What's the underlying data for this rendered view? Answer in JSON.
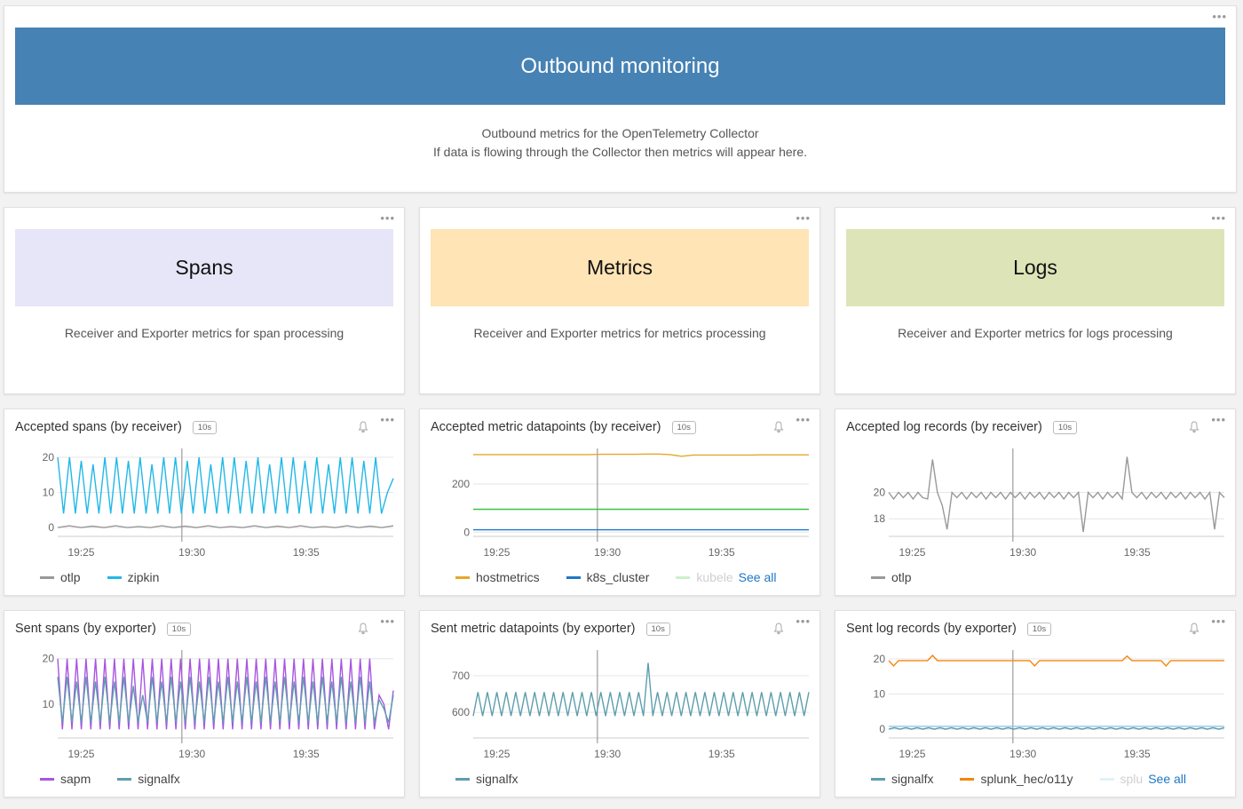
{
  "banner": {
    "title": "Outbound monitoring",
    "line1": "Outbound metrics for the OpenTelemetry Collector",
    "line2": "If data is flowing through the Collector then metrics will appear here."
  },
  "sections": [
    {
      "title": "Spans",
      "description": "Receiver and Exporter metrics for span processing",
      "color": "#e6e6f8"
    },
    {
      "title": "Metrics",
      "description": "Receiver and Exporter metrics for metrics processing",
      "color": "#ffe4b5"
    },
    {
      "title": "Logs",
      "description": "Receiver and Exporter metrics for logs processing",
      "color": "#dde4b8"
    }
  ],
  "resolution": "10s",
  "see_all": "See all",
  "chart_data": [
    {
      "type": "line",
      "title": "Accepted spans (by receiver)",
      "x_ticks": [
        "19:25",
        "19:30",
        "19:35"
      ],
      "y_ticks": [
        0,
        10,
        20
      ],
      "ylim": [
        -2,
        22
      ],
      "series": [
        {
          "name": "otlp",
          "color": "#999999",
          "values": [
            0,
            0.5,
            0,
            0.4,
            0,
            0.5,
            0,
            0.3,
            0,
            0.5,
            0,
            0.4,
            0,
            0.5,
            0,
            0.3,
            0,
            0.5,
            0,
            0.4,
            0,
            0.5,
            0,
            0.3,
            0,
            0.5,
            0,
            0.4,
            0,
            0.5
          ]
        },
        {
          "name": "zipkin",
          "color": "#21b8e8",
          "values": [
            20,
            4,
            20,
            4,
            19,
            4,
            18,
            4,
            20,
            4,
            20,
            4,
            19,
            4,
            20,
            4,
            18,
            4,
            20,
            4,
            20,
            4,
            19,
            4,
            20,
            4,
            18,
            4,
            20,
            4,
            20,
            4,
            19,
            4,
            20,
            4,
            18,
            4,
            20,
            4,
            20,
            4,
            19,
            4,
            20,
            4,
            18,
            4,
            20,
            4,
            20,
            4,
            19,
            4,
            20,
            4,
            10,
            14
          ]
        }
      ]
    },
    {
      "type": "line",
      "title": "Accepted metric datapoints (by receiver)",
      "x_ticks": [
        "19:25",
        "19:30",
        "19:35"
      ],
      "y_ticks": [
        0,
        200
      ],
      "ylim": [
        -10,
        340
      ],
      "series": [
        {
          "name": "hostmetrics",
          "color": "#e4a82b",
          "values": [
            322,
            322,
            322,
            322,
            322,
            322,
            322,
            322,
            322,
            322,
            322,
            323,
            323,
            323,
            323,
            324,
            324,
            322,
            315,
            320,
            320,
            320,
            320,
            320,
            320,
            321,
            321,
            321,
            321,
            321
          ]
        },
        {
          "name": "k8s_cluster",
          "color": "#1f77c6",
          "values": [
            10,
            10,
            10,
            10,
            10,
            10,
            10,
            10,
            10,
            10,
            10,
            10,
            10,
            10,
            10,
            10,
            10,
            10,
            10,
            10,
            10,
            10,
            10,
            10,
            10,
            10,
            10,
            10,
            10,
            10
          ]
        },
        {
          "name": "kubeletstats",
          "color": "#3cc43c",
          "values": [
            95,
            95,
            95,
            95,
            95,
            95,
            95,
            95,
            95,
            95,
            95,
            95,
            95,
            95,
            95,
            95,
            95,
            95,
            95,
            95,
            95,
            95,
            95,
            95,
            95,
            95,
            95,
            95,
            95,
            95
          ]
        }
      ]
    },
    {
      "type": "line",
      "title": "Accepted log records (by receiver)",
      "x_ticks": [
        "19:25",
        "19:30",
        "19:35"
      ],
      "y_ticks": [
        18,
        20
      ],
      "ylim": [
        16.8,
        23.2
      ],
      "series": [
        {
          "name": "otlp",
          "color": "#999999",
          "values": [
            20,
            19.5,
            20,
            19.6,
            20,
            19.5,
            20,
            19.6,
            19.5,
            22.5,
            20,
            19,
            17.2,
            20,
            19.6,
            20,
            19.5,
            20,
            19.6,
            20,
            19.5,
            20,
            19.6,
            20,
            19.5,
            20,
            19.6,
            20,
            19.5,
            20,
            19.6,
            20,
            19.5,
            20,
            19.6,
            20,
            19.5,
            20,
            19.6,
            20,
            17,
            20,
            19.6,
            20,
            19.5,
            20,
            19.6,
            20,
            19.5,
            22.7,
            20,
            19.6,
            20,
            19.5,
            20,
            19.6,
            20,
            19.5,
            20,
            19.6,
            20,
            19.5,
            20,
            19.6,
            20,
            19.5,
            20,
            17.2,
            20,
            19.6
          ]
        }
      ]
    },
    {
      "type": "line",
      "title": "Sent spans (by exporter)",
      "x_ticks": [
        "19:25",
        "19:30",
        "19:35"
      ],
      "y_ticks": [
        10,
        20
      ],
      "ylim": [
        3,
        21.5
      ],
      "series": [
        {
          "name": "sapm",
          "color": "#a855e0",
          "values": [
            20,
            4.5,
            20,
            4.5,
            20,
            4.5,
            20,
            4.5,
            20,
            4.5,
            20,
            4.5,
            20,
            4.5,
            20,
            4.5,
            20,
            4.5,
            20,
            4.5,
            20,
            4.5,
            20,
            4.5,
            20,
            4.5,
            20,
            4.5,
            20,
            4.5,
            20,
            4.5,
            20,
            4.5,
            20,
            4.5,
            20,
            4.5,
            20,
            4.5,
            20,
            4.5,
            20,
            4.5,
            20,
            4.5,
            20,
            4.5,
            20,
            4.5,
            20,
            4.5,
            20,
            4.5,
            20,
            4.5,
            20,
            4.5,
            20,
            4.5,
            20,
            4.5,
            20,
            4.5,
            20,
            4.5,
            20,
            4.5,
            12,
            10,
            4.5,
            13
          ]
        },
        {
          "name": "signalfx",
          "color": "#5e9ead",
          "values": [
            16,
            6,
            16,
            6,
            15,
            6,
            16,
            6,
            15,
            6,
            16,
            6,
            15,
            6,
            16,
            6,
            14,
            6,
            12,
            6,
            16,
            6,
            15,
            6,
            16,
            6,
            15,
            6,
            16,
            6,
            15,
            6,
            16,
            6,
            15,
            6,
            16,
            6,
            15,
            6,
            16,
            6,
            15,
            6,
            16,
            6,
            15,
            6,
            16,
            6,
            15,
            6,
            16,
            6,
            15,
            6,
            16,
            6,
            15,
            6,
            16,
            6,
            15,
            6,
            16,
            6,
            15,
            6,
            11,
            9,
            6,
            12
          ]
        }
      ]
    },
    {
      "type": "line",
      "title": "Sent metric datapoints (by exporter)",
      "x_ticks": [
        "19:25",
        "19:30",
        "19:35"
      ],
      "y_ticks": [
        600,
        700
      ],
      "ylim": [
        535,
        765
      ],
      "series": [
        {
          "name": "signalfx",
          "color": "#5e9ead",
          "values": [
            590,
            655,
            590,
            655,
            590,
            655,
            590,
            655,
            590,
            655,
            590,
            655,
            590,
            655,
            590,
            655,
            590,
            655,
            590,
            655,
            590,
            655,
            590,
            655,
            590,
            655,
            590,
            655,
            590,
            655,
            590,
            655,
            590,
            655,
            590,
            655,
            590,
            735,
            590,
            655,
            590,
            655,
            590,
            655,
            590,
            655,
            590,
            655,
            590,
            655,
            590,
            655,
            590,
            655,
            590,
            655,
            590,
            655,
            590,
            655,
            590,
            655,
            590,
            655,
            590,
            655,
            590,
            655,
            590,
            655,
            590,
            655
          ]
        }
      ]
    },
    {
      "type": "line",
      "title": "Sent log records (by exporter)",
      "x_ticks": [
        "19:25",
        "19:30",
        "19:35"
      ],
      "y_ticks": [
        0,
        10,
        20
      ],
      "ylim": [
        -2,
        22
      ],
      "series": [
        {
          "name": "signalfx",
          "color": "#5e9ead",
          "values": [
            0,
            0.4,
            0,
            0.4,
            0,
            0.4,
            0,
            0.4,
            0,
            0.4,
            0,
            0.4,
            0,
            0.4,
            0,
            0.4,
            0,
            0.4,
            0,
            0.4,
            0,
            0.4,
            0,
            0.4,
            0,
            0.4,
            0,
            0.4,
            0,
            0.4,
            0,
            0.4,
            0,
            0.4,
            0,
            0.4,
            0,
            0.4,
            0,
            0.4,
            0,
            0.4,
            0,
            0.4,
            0,
            0.4,
            0,
            0.4,
            0,
            0.4,
            0,
            0.4,
            0,
            0.4,
            0,
            0.4,
            0,
            0.4,
            0,
            0.4
          ]
        },
        {
          "name": "splunk_hec/o11y",
          "color": "#f5860d",
          "values": [
            19.5,
            18,
            19.5,
            19.5,
            19.5,
            19.5,
            19.5,
            19.5,
            19.5,
            21,
            19.5,
            19.5,
            19.5,
            19.5,
            19.5,
            19.5,
            19.5,
            19.5,
            19.5,
            19.5,
            19.5,
            19.5,
            19.5,
            19.5,
            19.5,
            19.5,
            19.5,
            19.5,
            19.5,
            19.5,
            18,
            19.5,
            19.5,
            19.5,
            19.5,
            19.5,
            19.5,
            19.5,
            19.5,
            19.5,
            19.5,
            19.5,
            19.5,
            19.5,
            19.5,
            19.5,
            19.5,
            19.5,
            19.5,
            20.8,
            19.5,
            19.5,
            19.5,
            19.5,
            19.5,
            19.5,
            19.5,
            18,
            19.5,
            19.5,
            19.5,
            19.5,
            19.5,
            19.5,
            19.5,
            19.5,
            19.5,
            19.5,
            19.5,
            19.5
          ]
        },
        {
          "name": "splunk_hec",
          "color": "#8fc8e8",
          "values": [
            0.8,
            0.8,
            0.8,
            0.8,
            0.8,
            0.8,
            0.8,
            0.8,
            0.8,
            0.8,
            0.8,
            0.8,
            0.8,
            0.8,
            0.8,
            0.8,
            0.8,
            0.8,
            0.8,
            0.8,
            0.8,
            0.8,
            0.8,
            0.8,
            0.8,
            0.8,
            0.8,
            0.8,
            0.8,
            0.8
          ]
        }
      ]
    }
  ],
  "legends": [
    {
      "items": [
        {
          "label": "otlp",
          "color": "#999999"
        },
        {
          "label": "zipkin",
          "color": "#21b8e8"
        }
      ]
    },
    {
      "items": [
        {
          "label": "hostmetrics",
          "color": "#e4a82b"
        },
        {
          "label": "k8s_cluster",
          "color": "#1f77c6"
        }
      ],
      "faded": {
        "label": "kubele",
        "color": "#3cc43c"
      },
      "see_all": true
    },
    {
      "items": [
        {
          "label": "otlp",
          "color": "#999999"
        }
      ]
    },
    {
      "items": [
        {
          "label": "sapm",
          "color": "#a855e0"
        },
        {
          "label": "signalfx",
          "color": "#5e9ead"
        }
      ]
    },
    {
      "items": [
        {
          "label": "signalfx",
          "color": "#5e9ead"
        }
      ]
    },
    {
      "items": [
        {
          "label": "signalfx",
          "color": "#5e9ead"
        },
        {
          "label": "splunk_hec/o11y",
          "color": "#f5860d"
        }
      ],
      "faded": {
        "label": "splu",
        "color": "#8fc8e8"
      },
      "see_all": true
    }
  ]
}
